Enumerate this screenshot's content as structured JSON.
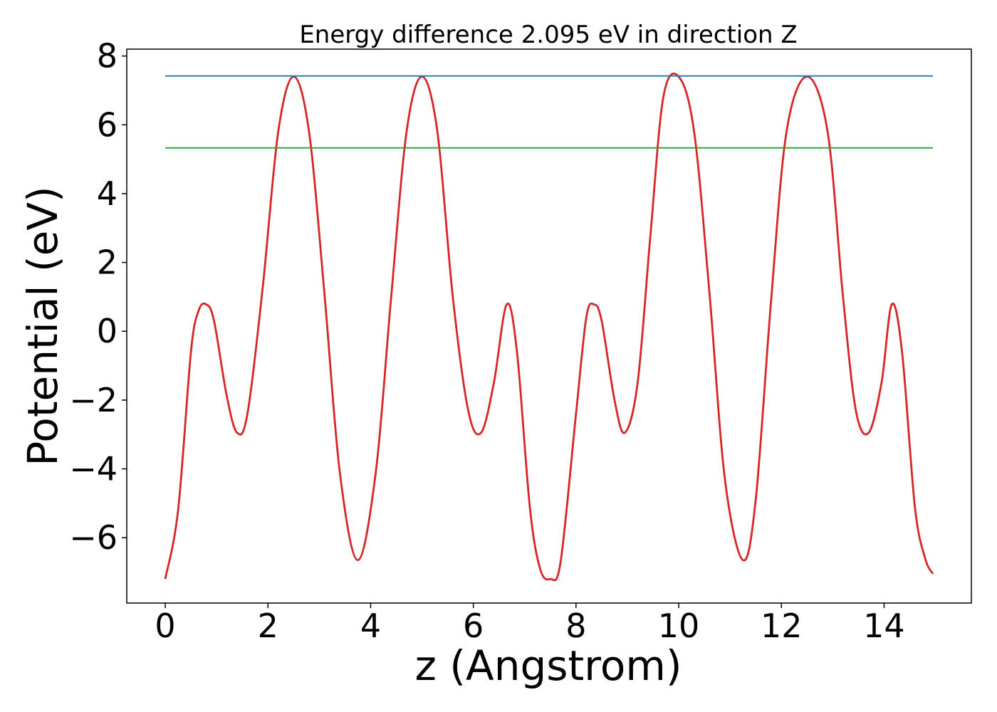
{
  "chart_data": {
    "type": "line",
    "title": "Energy difference 2.095 eV in direction Z",
    "xlabel": "z (Angstrom)",
    "ylabel": "Potential (eV)",
    "xlim": [
      -0.75,
      15.7
    ],
    "ylim": [
      -7.9,
      8.2
    ],
    "xticks": [
      0,
      2,
      4,
      6,
      8,
      10,
      12,
      14
    ],
    "yticks": [
      -6,
      -4,
      -2,
      0,
      2,
      4,
      6,
      8
    ],
    "xtick_labels": [
      "0",
      "2",
      "4",
      "6",
      "8",
      "10",
      "12",
      "14"
    ],
    "ytick_labels": [
      "−6",
      "−4",
      "−2",
      "0",
      "2",
      "4",
      "6",
      "8"
    ],
    "grid": false,
    "legend": "none",
    "series": [
      {
        "color": "#d62728",
        "x": [
          0.0,
          0.25,
          0.5,
          0.65,
          0.8,
          0.95,
          1.2,
          1.4,
          1.6,
          1.9,
          2.2,
          2.5,
          2.8,
          3.1,
          3.4,
          3.75,
          4.1,
          4.4,
          4.7,
          5.0,
          5.3,
          5.6,
          5.9,
          6.15,
          6.4,
          6.65,
          6.85,
          7.1,
          7.3,
          7.5,
          7.7,
          8.0,
          8.2,
          8.35,
          8.5,
          8.75,
          8.95,
          9.2,
          9.45,
          9.7,
          10.0,
          10.3,
          10.6,
          10.9,
          11.25,
          11.5,
          11.8,
          12.1,
          12.5,
          12.9,
          13.2,
          13.45,
          13.7,
          13.95,
          14.15,
          14.35,
          14.6,
          14.8,
          14.95
        ],
        "y": [
          -7.2,
          -5.2,
          -0.6,
          0.6,
          0.78,
          0.3,
          -1.9,
          -2.95,
          -2.4,
          1.3,
          5.8,
          7.4,
          5.8,
          1.1,
          -4.1,
          -6.65,
          -4.1,
          1.0,
          5.8,
          7.4,
          5.8,
          1.0,
          -2.3,
          -2.95,
          -1.5,
          0.78,
          -0.6,
          -5.1,
          -6.9,
          -7.2,
          -6.7,
          -2.4,
          0.4,
          0.78,
          0.3,
          -2.0,
          -2.95,
          -1.5,
          2.8,
          6.8,
          7.4,
          5.8,
          1.1,
          -4.3,
          -6.65,
          -4.9,
          0.9,
          5.8,
          7.4,
          5.8,
          1.0,
          -2.3,
          -2.95,
          -1.5,
          0.78,
          -0.6,
          -5.1,
          -6.6,
          -7.05
        ]
      },
      {
        "color": "#1f77b4",
        "x": [
          0.0,
          14.95
        ],
        "y": [
          7.42,
          7.42
        ]
      },
      {
        "color": "#2ca02c",
        "x": [
          0.0,
          14.95
        ],
        "y": [
          5.33,
          5.33
        ]
      }
    ]
  }
}
